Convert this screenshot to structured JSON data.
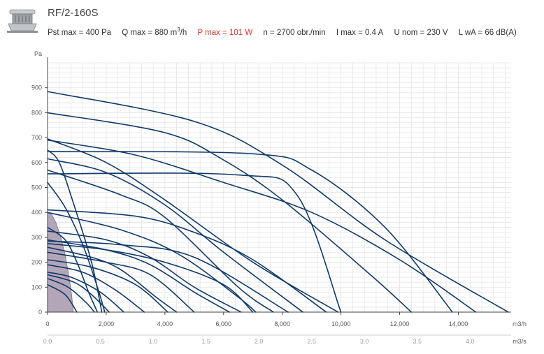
{
  "header": {
    "title": "RF/2-160S",
    "icon": "roof-fan-icon",
    "specs": {
      "pst": "Pst max = 400 Pa",
      "q_pre": "Q max = 880 m",
      "q_sup": "3",
      "q_post": "/h",
      "p": "P max = 101 W",
      "n": "n = 2700 obr./min",
      "i": "I max = 0.4 A",
      "u": "U nom = 230 V",
      "l": "L wA = 66 dB(A)"
    }
  },
  "colors": {
    "curve": "#0f3a6b",
    "highlight_fill": "#a797ad",
    "power_text": "#e0312f",
    "grid": "#e2e2e2"
  },
  "chart_data": {
    "type": "line",
    "ylabel": "Pa",
    "xlabel": "m3/h",
    "x2label": "m3/s",
    "xlim": [
      0,
      15800
    ],
    "ylim": [
      0,
      1000
    ],
    "x_ticks": [
      0,
      2000,
      4000,
      6000,
      8000,
      10000,
      12000,
      14000
    ],
    "x_tick_labels": [
      "0",
      "2,000",
      "4,000",
      "6,000",
      "8,000",
      "10,000",
      "12,000",
      "14,000"
    ],
    "x2_ticks": [
      0,
      0.5,
      1.0,
      1.5,
      2.0,
      2.5,
      3.0,
      3.5,
      4.0
    ],
    "x2_tick_labels": [
      "0.0",
      "0.5",
      "1.0",
      "1.5",
      "2.0",
      "2.5",
      "3.0",
      "3.5",
      "4.0"
    ],
    "y_ticks": [
      0,
      100,
      200,
      300,
      400,
      500,
      600,
      700,
      800,
      900
    ],
    "grid": true,
    "highlight_series": {
      "name": "RF/2-160S",
      "values": [
        [
          0,
          400
        ],
        [
          150,
          390
        ],
        [
          300,
          355
        ],
        [
          450,
          300
        ],
        [
          600,
          230
        ],
        [
          720,
          150
        ],
        [
          820,
          70
        ],
        [
          880,
          0
        ]
      ]
    },
    "series": [
      {
        "values": [
          [
            0,
            885
          ],
          [
            5000,
            765
          ],
          [
            8000,
            590
          ],
          [
            11500,
            290
          ],
          [
            15700,
            0
          ]
        ]
      },
      {
        "values": [
          [
            0,
            800
          ],
          [
            4000,
            720
          ],
          [
            6000,
            610
          ],
          [
            8000,
            450
          ],
          [
            11000,
            150
          ],
          [
            12400,
            0
          ]
        ]
      },
      {
        "values": [
          [
            0,
            690
          ],
          [
            3000,
            630
          ],
          [
            6000,
            520
          ],
          [
            9000,
            400
          ],
          [
            12000,
            210
          ],
          [
            14600,
            0
          ]
        ]
      },
      {
        "values": [
          [
            0,
            645
          ],
          [
            7000,
            635
          ],
          [
            9000,
            570
          ],
          [
            11500,
            340
          ],
          [
            13800,
            0
          ]
        ]
      },
      {
        "values": [
          [
            0,
            555
          ],
          [
            6500,
            550
          ],
          [
            8500,
            470
          ],
          [
            10000,
            0
          ]
        ]
      },
      {
        "values": [
          [
            0,
            695
          ],
          [
            2000,
            600
          ],
          [
            4000,
            450
          ],
          [
            7000,
            200
          ],
          [
            9900,
            0
          ]
        ]
      },
      {
        "values": [
          [
            0,
            615
          ],
          [
            2000,
            560
          ],
          [
            4000,
            430
          ],
          [
            6000,
            240
          ],
          [
            8700,
            0
          ]
        ]
      },
      {
        "values": [
          [
            0,
            570
          ],
          [
            2500,
            470
          ],
          [
            4000,
            380
          ],
          [
            6500,
            100
          ],
          [
            7700,
            0
          ]
        ]
      },
      {
        "values": [
          [
            0,
            410
          ],
          [
            3000,
            385
          ],
          [
            5000,
            320
          ],
          [
            7000,
            210
          ],
          [
            9500,
            0
          ]
        ]
      },
      {
        "values": [
          [
            0,
            400
          ],
          [
            2500,
            330
          ],
          [
            4500,
            230
          ],
          [
            6500,
            60
          ],
          [
            7100,
            0
          ]
        ]
      },
      {
        "values": [
          [
            0,
            325
          ],
          [
            2000,
            290
          ],
          [
            3500,
            220
          ],
          [
            5000,
            100
          ],
          [
            6600,
            0
          ]
        ]
      },
      {
        "values": [
          [
            0,
            290
          ],
          [
            2000,
            250
          ],
          [
            3500,
            190
          ],
          [
            5000,
            80
          ],
          [
            6200,
            0
          ]
        ]
      },
      {
        "values": [
          [
            0,
            285
          ],
          [
            2500,
            270
          ],
          [
            5000,
            220
          ],
          [
            8200,
            0
          ]
        ]
      },
      {
        "values": [
          [
            0,
            275
          ],
          [
            2000,
            250
          ],
          [
            4000,
            200
          ],
          [
            6000,
            110
          ],
          [
            7000,
            0
          ]
        ]
      },
      {
        "values": [
          [
            0,
            260
          ],
          [
            1500,
            220
          ],
          [
            2500,
            170
          ],
          [
            3700,
            60
          ],
          [
            4400,
            0
          ]
        ]
      },
      {
        "values": [
          [
            0,
            240
          ],
          [
            2000,
            200
          ],
          [
            3500,
            150
          ],
          [
            5000,
            0
          ]
        ]
      },
      {
        "values": [
          [
            0,
            210
          ],
          [
            1500,
            180
          ],
          [
            3000,
            110
          ],
          [
            4100,
            0
          ]
        ]
      },
      {
        "values": [
          [
            0,
            190
          ],
          [
            1200,
            160
          ],
          [
            2300,
            90
          ],
          [
            3300,
            0
          ]
        ]
      },
      {
        "values": [
          [
            0,
            160
          ],
          [
            800,
            140
          ],
          [
            1800,
            80
          ],
          [
            2600,
            0
          ]
        ]
      },
      {
        "values": [
          [
            0,
            150
          ],
          [
            900,
            120
          ],
          [
            1500,
            70
          ],
          [
            2100,
            0
          ]
        ]
      },
      {
        "values": [
          [
            0,
            135
          ],
          [
            700,
            100
          ],
          [
            1300,
            40
          ],
          [
            1600,
            0
          ]
        ]
      },
      {
        "values": [
          [
            0,
            110
          ],
          [
            600,
            70
          ],
          [
            1000,
            0
          ]
        ]
      },
      {
        "values": [
          [
            0,
            650
          ],
          [
            400,
            600
          ],
          [
            900,
            430
          ],
          [
            1500,
            200
          ],
          [
            1850,
            0
          ]
        ]
      },
      {
        "values": [
          [
            0,
            520
          ],
          [
            600,
            420
          ],
          [
            1200,
            270
          ],
          [
            1700,
            100
          ],
          [
            1950,
            0
          ]
        ]
      },
      {
        "values": [
          [
            0,
            340
          ],
          [
            600,
            290
          ],
          [
            1000,
            200
          ],
          [
            1400,
            80
          ],
          [
            1700,
            0
          ]
        ]
      }
    ]
  }
}
